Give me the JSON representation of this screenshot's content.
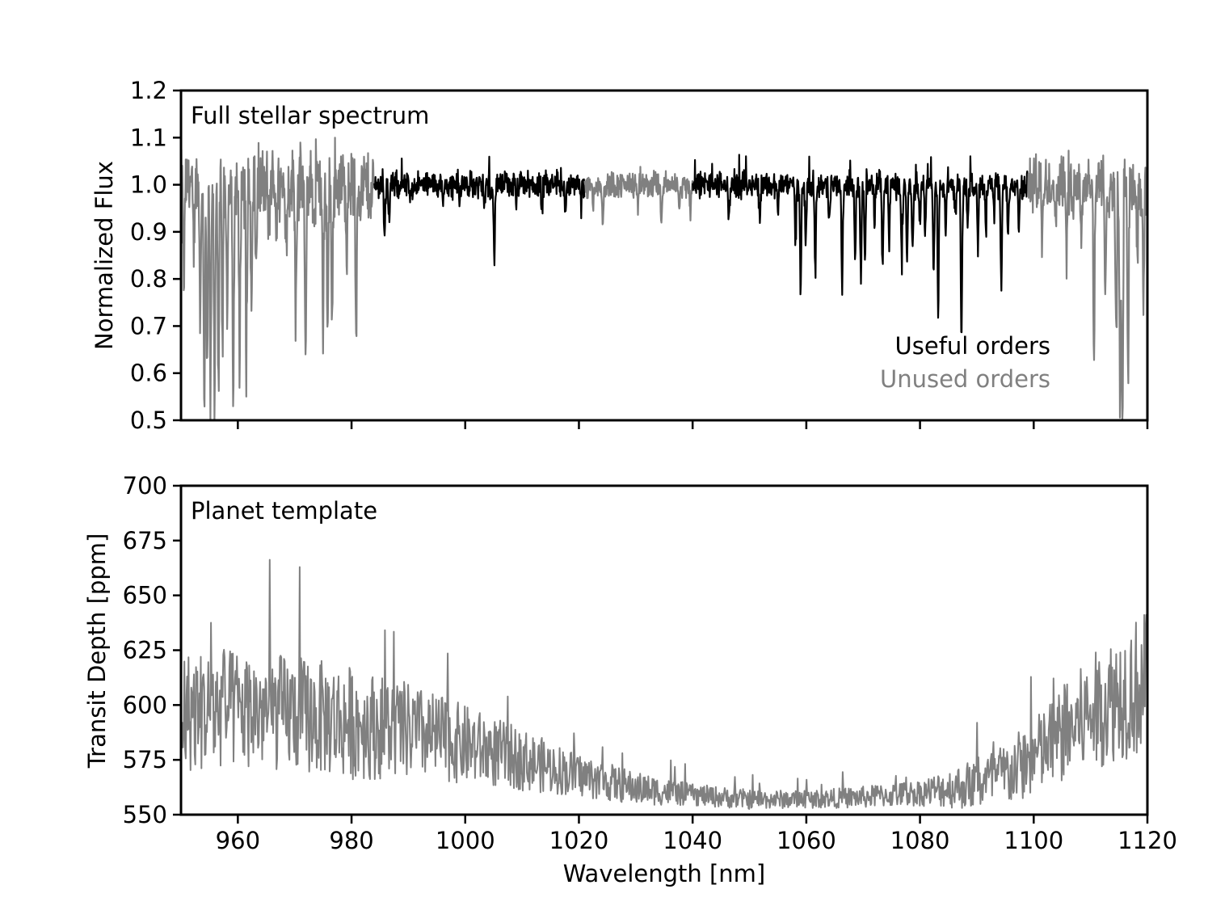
{
  "chart_data": [
    {
      "type": "line",
      "panel_label": "Full stellar spectrum",
      "xlabel": "",
      "ylabel": "Normalized Flux",
      "xlim": [
        950,
        1120
      ],
      "ylim": [
        0.5,
        1.2
      ],
      "xticks": [
        960,
        980,
        1000,
        1020,
        1040,
        1060,
        1080,
        1100,
        1120
      ],
      "xtick_labels_visible": false,
      "yticks": [
        0.5,
        0.6,
        0.7,
        0.8,
        0.9,
        1.0,
        1.1,
        1.2
      ],
      "ytick_labels": [
        "0.5",
        "0.6",
        "0.7",
        "0.8",
        "0.9",
        "1.0",
        "1.1",
        "1.2"
      ],
      "legend_placement": "lower-right",
      "legend": [
        {
          "label": "Useful orders",
          "color": "#000000"
        },
        {
          "label": "Unused orders",
          "color": "#808080"
        }
      ],
      "segments": [
        {
          "series": "Unused orders",
          "color": "#808080",
          "x_range": [
            950,
            984
          ],
          "noise": 0.14,
          "depth_scale": 1.0
        },
        {
          "series": "Useful orders",
          "color": "#000000",
          "x_range": [
            984,
            1021
          ],
          "noise": 0.05,
          "depth_scale": 0.6
        },
        {
          "series": "Unused orders",
          "color": "#808080",
          "x_range": [
            1021,
            1040
          ],
          "noise": 0.05,
          "depth_scale": 0.6
        },
        {
          "series": "Useful orders",
          "color": "#000000",
          "x_range": [
            1040,
            1099
          ],
          "noise": 0.05,
          "depth_scale": 1.0
        },
        {
          "series": "Unused orders",
          "color": "#808080",
          "x_range": [
            1099,
            1120
          ],
          "noise": 0.12,
          "depth_scale": 1.0
        }
      ],
      "absorption_lines": [
        [
          950.5,
          0.78
        ],
        [
          952.2,
          0.86
        ],
        [
          953.4,
          0.72
        ],
        [
          954.1,
          0.55
        ],
        [
          954.6,
          0.6
        ],
        [
          955.2,
          0.52
        ],
        [
          955.9,
          0.51
        ],
        [
          956.6,
          0.58
        ],
        [
          957.3,
          0.64
        ],
        [
          958.1,
          0.7
        ],
        [
          959.2,
          0.52
        ],
        [
          960.3,
          0.62
        ],
        [
          961.5,
          0.56
        ],
        [
          962.4,
          0.72
        ],
        [
          963.2,
          0.82
        ],
        [
          965.5,
          0.88
        ],
        [
          966.8,
          0.9
        ],
        [
          968.5,
          0.86
        ],
        [
          970.2,
          0.73
        ],
        [
          971.9,
          0.58
        ],
        [
          973.5,
          0.9
        ],
        [
          975.0,
          0.67
        ],
        [
          975.8,
          0.69
        ],
        [
          976.6,
          0.7
        ],
        [
          979.2,
          0.88
        ],
        [
          980.8,
          0.69
        ],
        [
          983.5,
          0.95
        ],
        [
          985.8,
          0.9
        ],
        [
          986.6,
          0.92
        ],
        [
          990.3,
          0.96
        ],
        [
          996.1,
          0.95
        ],
        [
          999.0,
          0.96
        ],
        [
          1003.4,
          0.95
        ],
        [
          1005.1,
          0.84
        ],
        [
          1009.0,
          0.95
        ],
        [
          1013.5,
          0.92
        ],
        [
          1017.6,
          0.94
        ],
        [
          1020.4,
          0.96
        ],
        [
          1022.5,
          0.95
        ],
        [
          1024.2,
          0.92
        ],
        [
          1030.4,
          0.94
        ],
        [
          1034.5,
          0.91
        ],
        [
          1037.7,
          0.94
        ],
        [
          1039.6,
          0.95
        ],
        [
          1046.4,
          0.92
        ],
        [
          1051.8,
          0.93
        ],
        [
          1055.0,
          0.94
        ],
        [
          1058.1,
          0.88
        ],
        [
          1059.0,
          0.78
        ],
        [
          1059.9,
          0.89
        ],
        [
          1061.6,
          0.81
        ],
        [
          1064.0,
          0.91
        ],
        [
          1066.3,
          0.78
        ],
        [
          1068.6,
          0.85
        ],
        [
          1069.6,
          0.8
        ],
        [
          1070.3,
          0.84
        ],
        [
          1072.0,
          0.93
        ],
        [
          1073.4,
          0.83
        ],
        [
          1074.6,
          0.88
        ],
        [
          1076.8,
          0.83
        ],
        [
          1077.7,
          0.86
        ],
        [
          1078.7,
          0.88
        ],
        [
          1080.0,
          0.93
        ],
        [
          1080.9,
          0.89
        ],
        [
          1082.4,
          0.83
        ],
        [
          1083.2,
          0.74
        ],
        [
          1084.5,
          0.89
        ],
        [
          1086.2,
          0.93
        ],
        [
          1087.3,
          0.68
        ],
        [
          1088.4,
          0.92
        ],
        [
          1090.2,
          0.88
        ],
        [
          1091.6,
          0.89
        ],
        [
          1093.0,
          0.93
        ],
        [
          1094.3,
          0.78
        ],
        [
          1095.5,
          0.89
        ],
        [
          1097.4,
          0.9
        ],
        [
          1101.5,
          0.85
        ],
        [
          1104.0,
          0.93
        ],
        [
          1105.8,
          0.86
        ],
        [
          1108.4,
          0.89
        ],
        [
          1110.6,
          0.64
        ],
        [
          1112.6,
          0.73
        ],
        [
          1114.5,
          0.63
        ],
        [
          1115.2,
          0.52
        ],
        [
          1115.6,
          0.5
        ],
        [
          1116.6,
          0.6
        ],
        [
          1118.2,
          0.85
        ],
        [
          1119.3,
          0.72
        ]
      ]
    },
    {
      "type": "line",
      "panel_label": "Planet template",
      "xlabel": "Wavelength [nm]",
      "ylabel": "Transit Depth [ppm]",
      "xlim": [
        950,
        1120
      ],
      "ylim": [
        550,
        700
      ],
      "xticks": [
        960,
        980,
        1000,
        1020,
        1040,
        1060,
        1080,
        1100,
        1120
      ],
      "xtick_labels": [
        "960",
        "980",
        "1000",
        "1020",
        "1040",
        "1060",
        "1080",
        "1100",
        "1120"
      ],
      "yticks": [
        550,
        575,
        600,
        625,
        650,
        675,
        700
      ],
      "ytick_labels": [
        "550",
        "575",
        "600",
        "625",
        "650",
        "675",
        "700"
      ],
      "color": "#808080",
      "baseline": {
        "x": [
          950,
          960,
          970,
          980,
          990,
          1000,
          1010,
          1020,
          1030,
          1040,
          1050,
          1060,
          1070,
          1080,
          1090,
          1095,
          1100,
          1105,
          1110,
          1115,
          1120
        ],
        "y": [
          597,
          598,
          596,
          592,
          588,
          582,
          575,
          568,
          562,
          559,
          557,
          557,
          558,
          560,
          564,
          568,
          576,
          586,
          596,
          605,
          610
        ]
      },
      "noise_amplitude": {
        "x": [
          950,
          980,
          1000,
          1020,
          1040,
          1060,
          1080,
          1100,
          1120
        ],
        "y": [
          28,
          26,
          18,
          10,
          5,
          4,
          6,
          18,
          34
        ]
      }
    }
  ]
}
